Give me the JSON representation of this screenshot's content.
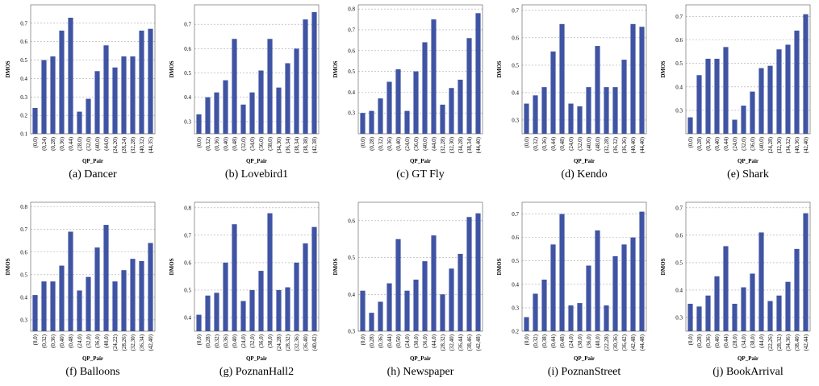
{
  "chart_data": [
    {
      "type": "bar",
      "caption": "(a) Dancer",
      "ylabel": "DMOS",
      "xlabel": "QP_Pair",
      "color": "#4054a4",
      "grid": true,
      "categories": [
        "(0,0)",
        "(0,24)",
        "(0,28)",
        "(0,36)",
        "(0,44)",
        "(28,0)",
        "(32,0)",
        "(40,0)",
        "(44,0)",
        "(24,20)",
        "(28,24)",
        "(32,28)",
        "(40,32)",
        "(44,35)"
      ],
      "values": [
        0.24,
        0.5,
        0.52,
        0.66,
        0.73,
        0.22,
        0.29,
        0.44,
        0.58,
        0.46,
        0.52,
        0.52,
        0.66,
        0.67
      ],
      "ylim": [
        0.1,
        0.8
      ],
      "yticks": [
        0.1,
        0.2,
        0.3,
        0.4,
        0.5,
        0.6,
        0.7
      ]
    },
    {
      "type": "bar",
      "caption": "(b) Lovebird1",
      "ylabel": "DMOS",
      "xlabel": "QP_Pair",
      "color": "#4054a4",
      "grid": true,
      "categories": [
        "(0,0)",
        "(0,32)",
        "(0,36)",
        "(0,40)",
        "(0,48)",
        "(32,0)",
        "(34,0)",
        "(36,0)",
        "(38,0)",
        "(34,30)",
        "(36,34)",
        "(38,34)",
        "(38,38)",
        "(42,38)"
      ],
      "values": [
        0.33,
        0.4,
        0.42,
        0.47,
        0.64,
        0.37,
        0.42,
        0.51,
        0.64,
        0.44,
        0.54,
        0.6,
        0.72,
        0.75
      ],
      "ylim": [
        0.25,
        0.78
      ],
      "yticks": [
        0.3,
        0.4,
        0.5,
        0.6,
        0.7
      ]
    },
    {
      "type": "bar",
      "caption": "(c) GT Fly",
      "ylabel": "DMOS",
      "xlabel": "QP_Pair",
      "color": "#4054a4",
      "grid": true,
      "categories": [
        "(0,0)",
        "(0,28)",
        "(0,32)",
        "(0,36)",
        "(0,40)",
        "(24,0)",
        "(36,0)",
        "(40,0)",
        "(44,0)",
        "(32,28)",
        "(32,30)",
        "(34,28)",
        "(38,34)",
        "(44,40)"
      ],
      "values": [
        0.3,
        0.31,
        0.37,
        0.45,
        0.51,
        0.31,
        0.5,
        0.64,
        0.75,
        0.34,
        0.42,
        0.46,
        0.66,
        0.78
      ],
      "ylim": [
        0.2,
        0.82
      ],
      "yticks": [
        0.3,
        0.4,
        0.5,
        0.6,
        0.7,
        0.8
      ]
    },
    {
      "type": "bar",
      "caption": "(d) Kendo",
      "ylabel": "DMOS",
      "xlabel": "QP_Pair",
      "color": "#4054a4",
      "grid": true,
      "categories": [
        "(0,0)",
        "(0,32)",
        "(0,36)",
        "(0,44)",
        "(0,48)",
        "(24,0)",
        "(32,0)",
        "(40,0)",
        "(48,0)",
        "(32,28)",
        "(36,32)",
        "(36,36)",
        "(40,40)",
        "(44,40)"
      ],
      "values": [
        0.36,
        0.39,
        0.42,
        0.55,
        0.65,
        0.36,
        0.35,
        0.42,
        0.57,
        0.42,
        0.42,
        0.52,
        0.65,
        0.64
      ],
      "ylim": [
        0.25,
        0.72
      ],
      "yticks": [
        0.3,
        0.4,
        0.5,
        0.6,
        0.7
      ]
    },
    {
      "type": "bar",
      "caption": "(e) Shark",
      "ylabel": "DMOS",
      "xlabel": "QP_Pair",
      "color": "#4054a4",
      "grid": true,
      "categories": [
        "(0,0)",
        "(0,28)",
        "(0,36)",
        "(0,40)",
        "(0,44)",
        "(24,0)",
        "(32,0)",
        "(36,0)",
        "(40,0)",
        "(24,28)",
        "(32,30)",
        "(34,32)",
        "(40,36)",
        "(42,40)"
      ],
      "values": [
        0.27,
        0.45,
        0.52,
        0.52,
        0.57,
        0.26,
        0.32,
        0.38,
        0.48,
        0.49,
        0.56,
        0.58,
        0.64,
        0.71
      ],
      "ylim": [
        0.2,
        0.75
      ],
      "yticks": [
        0.3,
        0.4,
        0.5,
        0.6,
        0.7
      ]
    },
    {
      "type": "bar",
      "caption": "(f) Balloons",
      "ylabel": "DMOS",
      "xlabel": "QP_Pair",
      "color": "#4054a4",
      "grid": true,
      "categories": [
        "(0,0)",
        "(0,32)",
        "(0,36)",
        "(0,40)",
        "(0,48)",
        "(24,0)",
        "(32,0)",
        "(36,0)",
        "(40,0)",
        "(24,22)",
        "(28,26)",
        "(32,30)",
        "(36,34)",
        "(42,40)"
      ],
      "values": [
        0.41,
        0.47,
        0.47,
        0.54,
        0.69,
        0.43,
        0.49,
        0.62,
        0.72,
        0.47,
        0.52,
        0.57,
        0.56,
        0.64
      ],
      "ylim": [
        0.25,
        0.82
      ],
      "yticks": [
        0.3,
        0.4,
        0.5,
        0.6,
        0.7,
        0.8
      ]
    },
    {
      "type": "bar",
      "caption": "(g) PoznanHall2",
      "ylabel": "DMOS",
      "xlabel": "QP_Pair",
      "color": "#4054a4",
      "grid": true,
      "categories": [
        "(0,0)",
        "(0,28)",
        "(0,32)",
        "(0,36)",
        "(0,40)",
        "(24,0)",
        "(32,0)",
        "(36,0)",
        "(38,0)",
        "(24,28)",
        "(28,32)",
        "(32,36)",
        "(36,40)",
        "(40,42)"
      ],
      "values": [
        0.41,
        0.48,
        0.49,
        0.6,
        0.74,
        0.46,
        0.5,
        0.57,
        0.78,
        0.5,
        0.51,
        0.6,
        0.67,
        0.73
      ],
      "ylim": [
        0.35,
        0.82
      ],
      "yticks": [
        0.4,
        0.5,
        0.6,
        0.7,
        0.8
      ]
    },
    {
      "type": "bar",
      "caption": "(h) Newspaper",
      "ylabel": "DMOS",
      "xlabel": "QP_Pair",
      "color": "#4054a4",
      "grid": true,
      "categories": [
        "(0,0)",
        "(0,28)",
        "(0,36)",
        "(0,44)",
        "(0,50)",
        "(24,0)",
        "(30,0)",
        "(36,0)",
        "(44,0)",
        "(28,32)",
        "(32,40)",
        "(36,44)",
        "(38,46)",
        "(42,48)"
      ],
      "values": [
        0.41,
        0.35,
        0.38,
        0.43,
        0.55,
        0.41,
        0.44,
        0.49,
        0.56,
        0.4,
        0.47,
        0.51,
        0.61,
        0.62
      ],
      "ylim": [
        0.3,
        0.65
      ],
      "yticks": [
        0.3,
        0.4,
        0.5,
        0.6
      ]
    },
    {
      "type": "bar",
      "caption": "(i) PoznanStreet",
      "ylabel": "DMOS",
      "xlabel": "QP_Pair",
      "color": "#4054a4",
      "grid": true,
      "categories": [
        "(0,0)",
        "(0,32)",
        "(0,38)",
        "(0,44)",
        "(0,48)",
        "(24,0)",
        "(30,0)",
        "(36,0)",
        "(40,0)",
        "(22,28)",
        "(30,36)",
        "(36,42)",
        "(42,48)",
        "(44,48)"
      ],
      "values": [
        0.26,
        0.36,
        0.42,
        0.57,
        0.7,
        0.31,
        0.32,
        0.48,
        0.63,
        0.31,
        0.52,
        0.57,
        0.6,
        0.71
      ],
      "ylim": [
        0.2,
        0.75
      ],
      "yticks": [
        0.2,
        0.3,
        0.4,
        0.5,
        0.6,
        0.7
      ]
    },
    {
      "type": "bar",
      "caption": "(j) BookArrival",
      "ylabel": "DMOS",
      "xlabel": "QP_Pair",
      "color": "#4054a4",
      "grid": true,
      "categories": [
        "(0,0)",
        "(0,28)",
        "(0,36)",
        "(0,40)",
        "(0,44)",
        "(28,0)",
        "(34,0)",
        "(38,0)",
        "(44,0)",
        "(22,26)",
        "(28,32)",
        "(34,36)",
        "(38,40)",
        "(42,44)"
      ],
      "values": [
        0.35,
        0.34,
        0.38,
        0.45,
        0.56,
        0.35,
        0.41,
        0.46,
        0.61,
        0.36,
        0.38,
        0.43,
        0.55,
        0.68
      ],
      "ylim": [
        0.25,
        0.72
      ],
      "yticks": [
        0.3,
        0.4,
        0.5,
        0.6,
        0.7
      ]
    }
  ]
}
